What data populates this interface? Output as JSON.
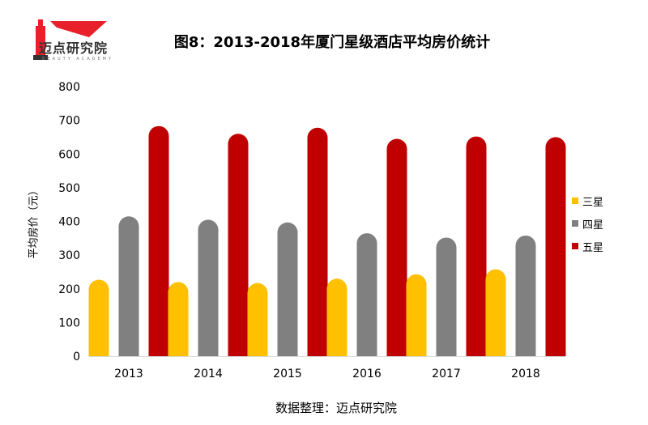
{
  "logo": {
    "name": "迈点研究院",
    "subtitle": "BEAUTY ACADEMY",
    "colors": {
      "red": "#e8202a",
      "dark": "#333333"
    }
  },
  "chart_data": {
    "type": "bar",
    "title": "图8：2013-2018年厦门星级酒店平均房价统计",
    "xlabel": "",
    "ylabel": "平均房价（元）",
    "categories": [
      "2013",
      "2014",
      "2015",
      "2016",
      "2017",
      "2018"
    ],
    "ylim": [
      0,
      800
    ],
    "yticks": [
      "0",
      "100",
      "200",
      "300",
      "400",
      "500",
      "600",
      "700",
      "800"
    ],
    "grid": false,
    "legend_position": "right",
    "series": [
      {
        "name": "三星",
        "color": "#ffc000",
        "values": [
          227,
          220,
          217,
          230,
          243,
          258
        ]
      },
      {
        "name": "四星",
        "color": "#808080",
        "values": [
          415,
          405,
          397,
          365,
          352,
          358
        ]
      },
      {
        "name": "五星",
        "color": "#c00000",
        "values": [
          683,
          660,
          678,
          645,
          652,
          650
        ]
      }
    ]
  },
  "source": "数据整理：迈点研究院"
}
